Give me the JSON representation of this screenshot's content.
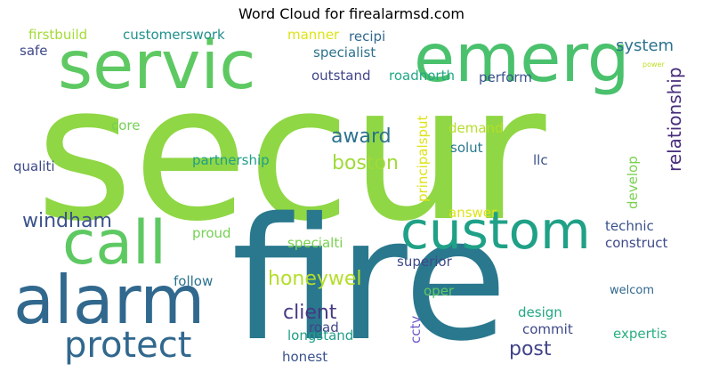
{
  "title": "Word Cloud for firealarmsd.com",
  "chart_data": {
    "type": "wordcloud",
    "title": "Word Cloud for firealarmsd.com",
    "words": [
      {
        "text": "secur",
        "weight": 1.0,
        "color": "#8fd744",
        "vertical": false
      },
      {
        "text": "fire",
        "weight": 0.95,
        "color": "#2a788e",
        "vertical": false
      },
      {
        "text": "servic",
        "weight": 0.55,
        "color": "#5ec962",
        "vertical": false
      },
      {
        "text": "emerg",
        "weight": 0.55,
        "color": "#4ac16d",
        "vertical": false
      },
      {
        "text": "alarm",
        "weight": 0.5,
        "color": "#31688e",
        "vertical": false
      },
      {
        "text": "custom",
        "weight": 0.45,
        "color": "#1fa187",
        "vertical": false
      },
      {
        "text": "call",
        "weight": 0.45,
        "color": "#5ec962",
        "vertical": false
      },
      {
        "text": "protect",
        "weight": 0.28,
        "color": "#31688e",
        "vertical": false
      },
      {
        "text": "relationship",
        "weight": 0.16,
        "color": "#472d7b",
        "vertical": true
      },
      {
        "text": "windham",
        "weight": 0.16,
        "color": "#3b528b",
        "vertical": false
      },
      {
        "text": "award",
        "weight": 0.15,
        "color": "#2c728e",
        "vertical": false
      },
      {
        "text": "boston",
        "weight": 0.15,
        "color": "#a0da39",
        "vertical": false
      },
      {
        "text": "honeywel",
        "weight": 0.15,
        "color": "#b5de2b",
        "vertical": false
      },
      {
        "text": "client",
        "weight": 0.15,
        "color": "#443983",
        "vertical": false
      },
      {
        "text": "post",
        "weight": 0.15,
        "color": "#414487",
        "vertical": false
      },
      {
        "text": "system",
        "weight": 0.12,
        "color": "#2c728e",
        "vertical": false
      },
      {
        "text": "firstbuild",
        "weight": 0.1,
        "color": "#a5db36",
        "vertical": false
      },
      {
        "text": "customerswork",
        "weight": 0.1,
        "color": "#21918c",
        "vertical": false
      },
      {
        "text": "manner",
        "weight": 0.1,
        "color": "#dde318",
        "vertical": false
      },
      {
        "text": "recipi",
        "weight": 0.1,
        "color": "#31688e",
        "vertical": false
      },
      {
        "text": "safe",
        "weight": 0.1,
        "color": "#3e4989",
        "vertical": false
      },
      {
        "text": "specialist",
        "weight": 0.1,
        "color": "#2c728e",
        "vertical": false
      },
      {
        "text": "outstand",
        "weight": 0.1,
        "color": "#404688",
        "vertical": false
      },
      {
        "text": "roadnorth",
        "weight": 0.1,
        "color": "#22a884",
        "vertical": false
      },
      {
        "text": "perform",
        "weight": 0.1,
        "color": "#3b528b",
        "vertical": false
      },
      {
        "text": "core",
        "weight": 0.1,
        "color": "#75d054",
        "vertical": false
      },
      {
        "text": "principalsput",
        "weight": 0.1,
        "color": "#dde318",
        "vertical": true
      },
      {
        "text": "demand",
        "weight": 0.1,
        "color": "#b5de2b",
        "vertical": false
      },
      {
        "text": "solut",
        "weight": 0.1,
        "color": "#2a788e",
        "vertical": false
      },
      {
        "text": "llc",
        "weight": 0.1,
        "color": "#3b528b",
        "vertical": false
      },
      {
        "text": "qualiti",
        "weight": 0.1,
        "color": "#3e4989",
        "vertical": false
      },
      {
        "text": "partnership",
        "weight": 0.1,
        "color": "#1f9e89",
        "vertical": false
      },
      {
        "text": "develop",
        "weight": 0.1,
        "color": "#7ad151",
        "vertical": true
      },
      {
        "text": "answer",
        "weight": 0.1,
        "color": "#dde318",
        "vertical": false
      },
      {
        "text": "technic",
        "weight": 0.1,
        "color": "#3b528b",
        "vertical": false
      },
      {
        "text": "proud",
        "weight": 0.1,
        "color": "#75d054",
        "vertical": false
      },
      {
        "text": "construct",
        "weight": 0.1,
        "color": "#3e4989",
        "vertical": false
      },
      {
        "text": "specialti",
        "weight": 0.1,
        "color": "#7ad151",
        "vertical": false
      },
      {
        "text": "superior",
        "weight": 0.1,
        "color": "#3e4989",
        "vertical": false
      },
      {
        "text": "follow",
        "weight": 0.1,
        "color": "#2c728e",
        "vertical": false
      },
      {
        "text": "oper",
        "weight": 0.1,
        "color": "#5ec962",
        "vertical": false
      },
      {
        "text": "welcom",
        "weight": 0.08,
        "color": "#31688e",
        "vertical": false
      },
      {
        "text": "cctv",
        "weight": 0.1,
        "color": "#6a5acd",
        "vertical": true
      },
      {
        "text": "road",
        "weight": 0.1,
        "color": "#404688",
        "vertical": false
      },
      {
        "text": "design",
        "weight": 0.1,
        "color": "#22a884",
        "vertical": false
      },
      {
        "text": "longstand",
        "weight": 0.1,
        "color": "#1f9e89",
        "vertical": false
      },
      {
        "text": "commit",
        "weight": 0.1,
        "color": "#3e4989",
        "vertical": false
      },
      {
        "text": "expertis",
        "weight": 0.1,
        "color": "#29af7f",
        "vertical": false
      },
      {
        "text": "honest",
        "weight": 0.1,
        "color": "#3b528b",
        "vertical": false
      },
      {
        "text": "power",
        "weight": 0.05,
        "color": "#bddf26",
        "vertical": false
      }
    ]
  }
}
